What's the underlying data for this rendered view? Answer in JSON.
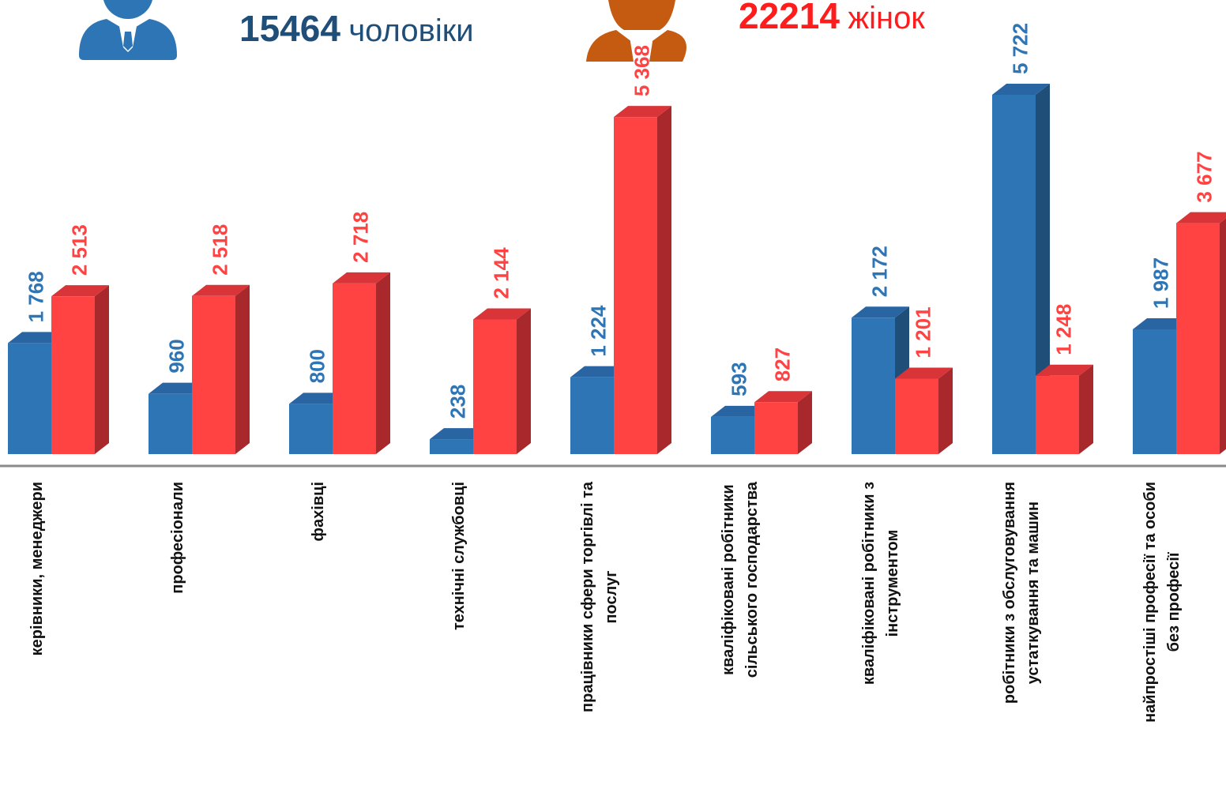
{
  "chart_data": {
    "type": "bar3d",
    "categories": [
      "керівники, менеджери",
      "професіонали",
      "фахівці",
      "технічні службовці",
      "працівники сфери торгівлі та послуг",
      "кваліфіковані робітники сільського господарства",
      "кваліфіковані робітники з інструментом",
      "робітники з обслуговування устаткування та машин",
      "найпростіші професії та особи без професії"
    ],
    "series": [
      {
        "name": "чоловіки",
        "total": 15464,
        "color": "#2e75b6",
        "side_color": "#1f4e79",
        "top_color": "#2a65a3",
        "total_color": "#1f4e79",
        "values": [
          1768,
          960,
          800,
          238,
          1224,
          593,
          2172,
          5722,
          1987
        ],
        "value_labels": [
          "1 768",
          "960",
          "800",
          "238",
          "1 224",
          "593",
          "2 172",
          "5 722",
          "1 987"
        ]
      },
      {
        "name": "жінок",
        "total": 22214,
        "color": "#ff4242",
        "side_color": "#a8282c",
        "top_color": "#d93438",
        "total_color": "#ff1c1c",
        "values": [
          2513,
          2518,
          2718,
          2144,
          5368,
          827,
          1201,
          1248,
          3677
        ],
        "value_labels": [
          "2 513",
          "2 518",
          "2 718",
          "2 144",
          "5 368",
          "827",
          "1 201",
          "1 248",
          "3 677"
        ]
      }
    ]
  }
}
